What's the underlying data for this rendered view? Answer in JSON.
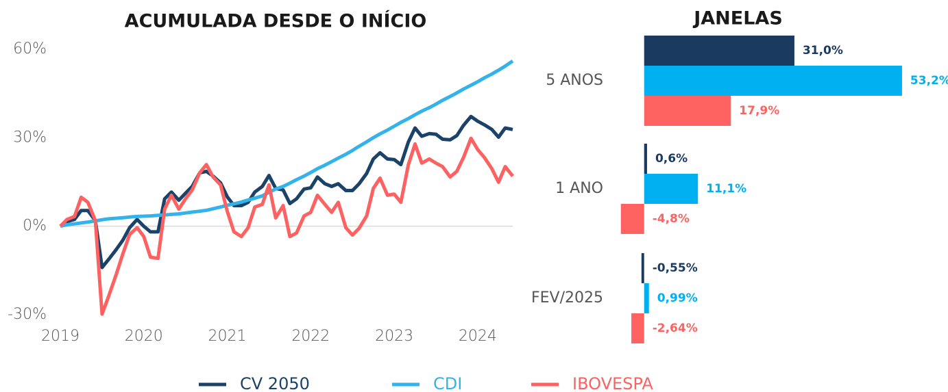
{
  "chart_data": [
    {
      "type": "line",
      "title": "ACUMULADA DESDE O INÍCIO",
      "x": [
        2019,
        2019.08,
        2019.17,
        2019.25,
        2019.33,
        2019.42,
        2019.5,
        2019.58,
        2019.67,
        2019.75,
        2019.83,
        2019.92,
        2020,
        2020.08,
        2020.17,
        2020.25,
        2020.33,
        2020.42,
        2020.5,
        2020.58,
        2020.67,
        2020.75,
        2020.83,
        2020.92,
        2021,
        2021.08,
        2021.17,
        2021.25,
        2021.33,
        2021.42,
        2021.5,
        2021.58,
        2021.67,
        2021.75,
        2021.83,
        2021.92,
        2022,
        2022.08,
        2022.17,
        2022.25,
        2022.33,
        2022.42,
        2022.5,
        2022.58,
        2022.67,
        2022.75,
        2022.83,
        2022.92,
        2023,
        2023.08,
        2023.17,
        2023.25,
        2023.33,
        2023.42,
        2023.5,
        2023.58,
        2023.67,
        2023.75,
        2023.83,
        2023.92,
        2024,
        2024.08,
        2024.17,
        2024.25,
        2024.33,
        2024.42
      ],
      "series": [
        {
          "name": "CV 2050",
          "color": "#1b4268",
          "values": [
            0,
            1.6,
            2.3,
            5.3,
            5.3,
            1.9,
            -14.0,
            -11.2,
            -7.9,
            -4.7,
            -0.5,
            2.3,
            0,
            -1.9,
            -1.9,
            9.3,
            11.6,
            8.8,
            11.2,
            13.5,
            18.1,
            18.6,
            17.0,
            14.7,
            10.0,
            7.0,
            7.0,
            8.1,
            11.6,
            13.5,
            17.2,
            12.8,
            12.3,
            7.7,
            9.3,
            12.6,
            13.0,
            16.7,
            14.4,
            13.5,
            14.4,
            12.1,
            12.1,
            14.4,
            17.9,
            22.8,
            24.9,
            22.8,
            22.6,
            20.9,
            28.6,
            33.3,
            30.5,
            31.4,
            31.2,
            29.5,
            29.3,
            30.7,
            34.2,
            37.2,
            35.6,
            34.4,
            32.8,
            30.2,
            33.3,
            32.8
          ]
        },
        {
          "name": "CDI",
          "color": "#33b3ea",
          "values": [
            0,
            0.5,
            0.8,
            1.1,
            1.4,
            1.8,
            2.2,
            2.5,
            2.7,
            2.9,
            3.1,
            3.3,
            3.4,
            3.5,
            3.7,
            3.8,
            4.0,
            4.2,
            4.5,
            4.8,
            5.1,
            5.4,
            5.9,
            6.5,
            7.1,
            7.6,
            8.2,
            8.9,
            9.5,
            10.3,
            11.5,
            12.6,
            13.5,
            14.6,
            15.8,
            17.0,
            18.2,
            19.5,
            20.7,
            21.9,
            23.1,
            24.4,
            25.7,
            27.1,
            28.6,
            30.0,
            31.3,
            32.6,
            33.9,
            35.2,
            36.5,
            37.8,
            39.0,
            40.2,
            41.4,
            42.7,
            44.0,
            45.2,
            46.5,
            47.8,
            49.0,
            50.3,
            51.6,
            52.9,
            54.3,
            56.0
          ]
        },
        {
          "name": "IBOVESPA",
          "color": "#fc6262",
          "values": [
            0,
            2.3,
            3.3,
            9.8,
            8.1,
            1.9,
            -29.8,
            -23.7,
            -16.3,
            -9.3,
            -2.8,
            -0.5,
            -3.5,
            -10.5,
            -10.9,
            5.8,
            10.5,
            5.8,
            9.3,
            12.3,
            18.1,
            20.9,
            16.7,
            14.0,
            5.1,
            -1.9,
            -3.5,
            -0.5,
            6.5,
            7.4,
            14.0,
            2.8,
            7.0,
            -3.5,
            -2.3,
            3.5,
            4.7,
            10.5,
            7.4,
            4.7,
            8.1,
            -0.5,
            -3.0,
            -0.7,
            3.5,
            12.8,
            16.3,
            10.5,
            10.9,
            8.1,
            20.9,
            27.9,
            21.4,
            22.8,
            21.4,
            20.2,
            16.7,
            18.6,
            23.3,
            29.8,
            26.0,
            23.3,
            19.5,
            14.9,
            20.2,
            17.0
          ]
        }
      ],
      "xlim": [
        2019,
        2024.42
      ],
      "xticks": [
        2019,
        2020,
        2021,
        2022,
        2023,
        2024
      ],
      "ylim": [
        -30,
        60
      ],
      "yticks": [
        {
          "value": -30,
          "label": "-30%"
        },
        {
          "value": 0,
          "label": "0%"
        },
        {
          "value": 30,
          "label": "30%"
        },
        {
          "value": 60,
          "label": "60%"
        }
      ],
      "legend": "bottom"
    },
    {
      "type": "bar",
      "orientation": "horizontal",
      "title": "JANELAS",
      "categories": [
        "5 ANOS",
        "1 ANO",
        "FEV/2025"
      ],
      "series": [
        {
          "name": "CV 2050",
          "color": "#1b3a5f",
          "values": [
            31.0,
            0.6,
            -0.55
          ],
          "value_labels": [
            "31,0%",
            "0,6%",
            "-0,55%"
          ]
        },
        {
          "name": "CDI",
          "color": "#00b0f0",
          "values": [
            53.2,
            11.1,
            0.99
          ],
          "value_labels": [
            "53,2%",
            "11,1%",
            "0,99%"
          ]
        },
        {
          "name": "IBOVESPA",
          "color": "#ff6361",
          "values": [
            17.9,
            -4.8,
            -2.64
          ],
          "value_labels": [
            "17,9%",
            "-4,8%",
            "-2,64%"
          ]
        }
      ],
      "xlim": [
        -10,
        60
      ]
    }
  ]
}
